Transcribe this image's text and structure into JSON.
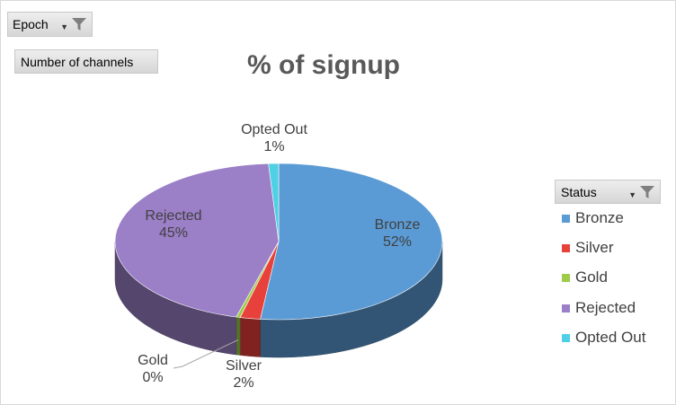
{
  "filters": {
    "epoch_label": "Epoch",
    "channels_label": "Number of channels",
    "status_label": "Status"
  },
  "colors": {
    "bronze": "#5b9bd5",
    "silver": "#e8403a",
    "gold": "#9fcb4b",
    "rejected": "#9b7fc7",
    "opted_out": "#4fd0e4"
  },
  "chart_data": {
    "type": "pie",
    "title": "% of signup",
    "categories": [
      "Bronze",
      "Silver",
      "Gold",
      "Rejected",
      "Opted Out"
    ],
    "values": [
      52,
      2,
      0.4,
      45,
      1
    ],
    "labels": [
      "52%",
      "2%",
      "0%",
      "45%",
      "1%"
    ],
    "legend": "right",
    "three_d": true
  }
}
